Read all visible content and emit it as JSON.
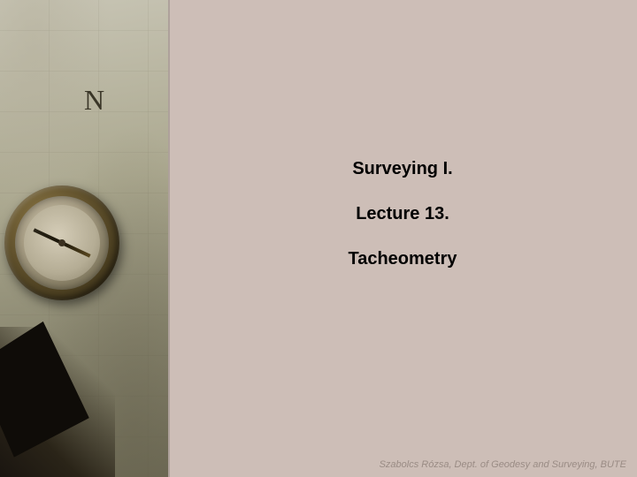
{
  "slide": {
    "title": "Surveying I.",
    "subtitle": "Lecture 13.",
    "topic": "Tacheometry",
    "north_letter": "N",
    "footer_credit": "Szabolcs Rózsa, Dept. of Geodesy and Surveying, BUTE"
  },
  "styling": {
    "background_color_right": "#cdbeb7",
    "text_color": "#000000",
    "footer_color": "#9a8c85",
    "title_fontsize": 20,
    "title_fontweight": "bold",
    "font_family": "Verdana, Geneva, sans-serif",
    "left_panel_width": 190,
    "slide_width": 720,
    "slide_height": 540,
    "compass_colors": {
      "outer_rim": "#6b5a32",
      "inner_face": "#b5ad95",
      "needle": "#2a2518"
    },
    "map_colors": {
      "light": "#c8c5b5",
      "dark": "#6d6a55"
    }
  }
}
